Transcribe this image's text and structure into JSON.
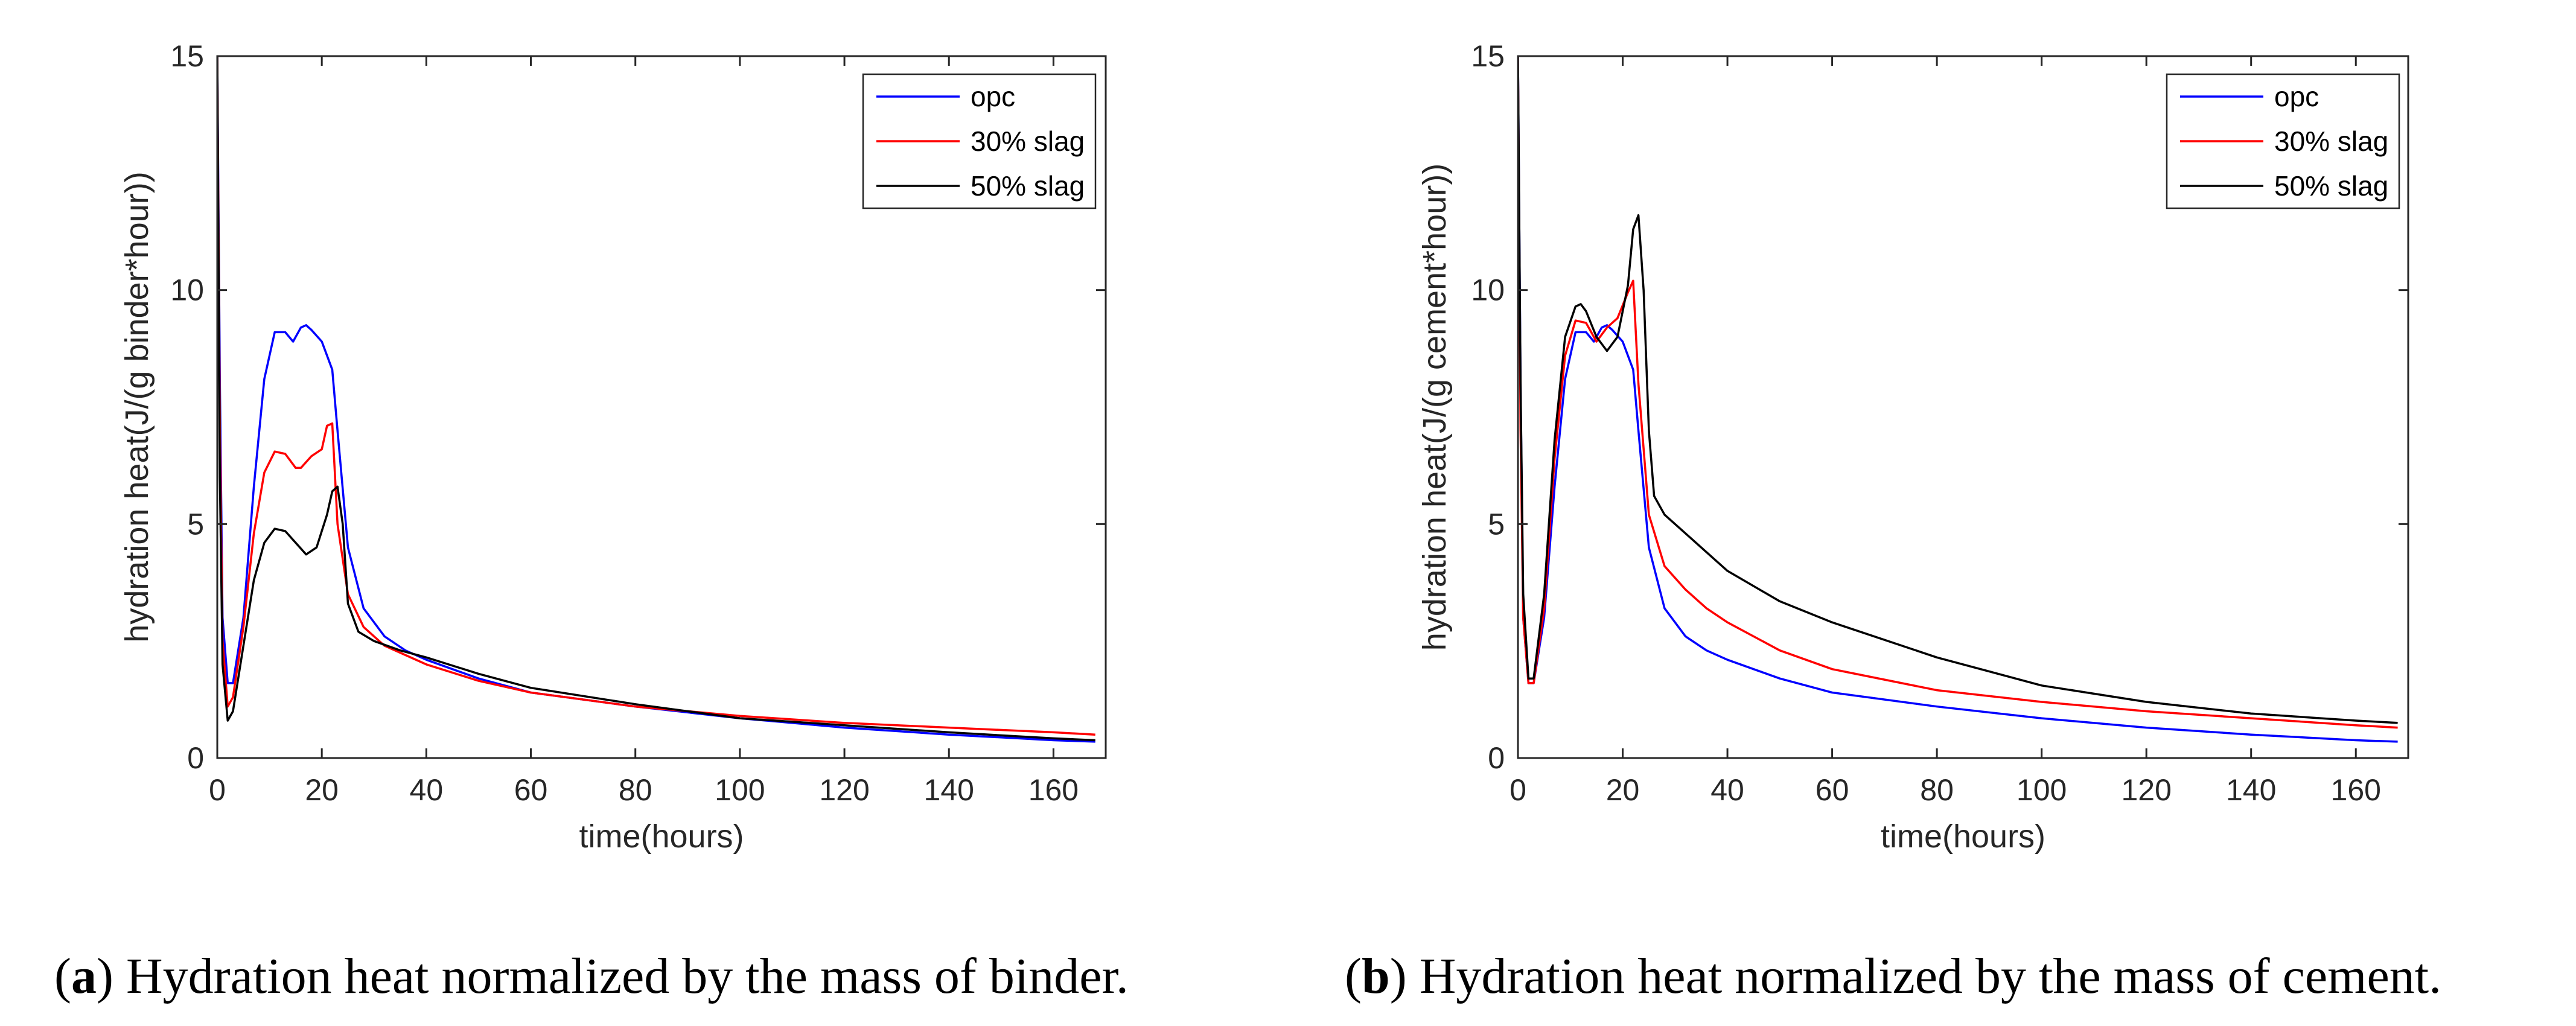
{
  "chart_data": [
    {
      "type": "line",
      "panel": "a",
      "caption_letter": "a",
      "caption_text": "Hydration heat normalized by the mass of binder.",
      "xlabel": "time(hours)",
      "ylabel": "hydration heat(J/(g binder*hour))",
      "xlim": [
        0,
        170
      ],
      "ylim": [
        0,
        15
      ],
      "xticks": [
        0,
        20,
        40,
        60,
        80,
        100,
        120,
        140,
        160
      ],
      "yticks": [
        0,
        5,
        10,
        15
      ],
      "grid": false,
      "legend_position": "top-right",
      "series": [
        {
          "name": "opc",
          "color": "#0000ff",
          "x": [
            0,
            0.5,
            1,
            2,
            3,
            5,
            7,
            9,
            11,
            13,
            14.5,
            16,
            17,
            18,
            20,
            22,
            23,
            25,
            28,
            32,
            36,
            40,
            50,
            60,
            80,
            100,
            120,
            140,
            160,
            168
          ],
          "y": [
            15,
            8,
            3,
            1.6,
            1.6,
            3,
            5.8,
            8.1,
            9.1,
            9.1,
            8.9,
            9.2,
            9.25,
            9.15,
            8.9,
            8.3,
            7.0,
            4.5,
            3.2,
            2.6,
            2.3,
            2.1,
            1.7,
            1.4,
            1.1,
            0.85,
            0.65,
            0.5,
            0.38,
            0.35
          ]
        },
        {
          "name": "30% slag",
          "color": "#ff0000",
          "x": [
            0,
            0.5,
            1,
            2,
            3,
            5,
            7,
            9,
            11,
            13,
            15,
            16,
            18,
            20,
            21,
            22,
            23,
            25,
            28,
            32,
            36,
            40,
            50,
            60,
            80,
            100,
            120,
            140,
            160,
            168
          ],
          "y": [
            15,
            7,
            2.5,
            1.1,
            1.3,
            2.8,
            4.8,
            6.1,
            6.55,
            6.5,
            6.2,
            6.2,
            6.45,
            6.6,
            7.1,
            7.15,
            5.0,
            3.5,
            2.8,
            2.4,
            2.2,
            2.0,
            1.65,
            1.4,
            1.1,
            0.9,
            0.75,
            0.65,
            0.55,
            0.5
          ]
        },
        {
          "name": "50% slag",
          "color": "#000000",
          "x": [
            0,
            0.5,
            1,
            2,
            3,
            5,
            7,
            9,
            11,
            13,
            15,
            17,
            19,
            21,
            22,
            23,
            24,
            25,
            27,
            30,
            35,
            40,
            50,
            60,
            80,
            100,
            120,
            140,
            160,
            168
          ],
          "y": [
            15,
            6,
            2,
            0.8,
            1.0,
            2.4,
            3.8,
            4.6,
            4.9,
            4.85,
            4.6,
            4.35,
            4.5,
            5.2,
            5.7,
            5.8,
            5.0,
            3.3,
            2.7,
            2.5,
            2.3,
            2.15,
            1.8,
            1.5,
            1.15,
            0.85,
            0.7,
            0.55,
            0.42,
            0.38
          ]
        }
      ]
    },
    {
      "type": "line",
      "panel": "b",
      "caption_letter": "b",
      "caption_text": "Hydration heat normalized by the mass of cement.",
      "xlabel": "time(hours)",
      "ylabel": "hydration heat(J/(g cement*hour))",
      "xlim": [
        0,
        170
      ],
      "ylim": [
        0,
        15
      ],
      "xticks": [
        0,
        20,
        40,
        60,
        80,
        100,
        120,
        140,
        160
      ],
      "yticks": [
        0,
        5,
        10,
        15
      ],
      "grid": false,
      "legend_position": "top-right",
      "series": [
        {
          "name": "opc",
          "color": "#0000ff",
          "x": [
            0,
            0.5,
            1,
            2,
            3,
            5,
            7,
            9,
            11,
            13,
            14.5,
            16,
            17,
            18,
            20,
            22,
            23,
            25,
            28,
            32,
            36,
            40,
            50,
            60,
            80,
            100,
            120,
            140,
            160,
            168
          ],
          "y": [
            15,
            8,
            3,
            1.6,
            1.6,
            3,
            5.8,
            8.1,
            9.1,
            9.1,
            8.9,
            9.2,
            9.25,
            9.15,
            8.9,
            8.3,
            7.0,
            4.5,
            3.2,
            2.6,
            2.3,
            2.1,
            1.7,
            1.4,
            1.1,
            0.85,
            0.65,
            0.5,
            0.38,
            0.35
          ]
        },
        {
          "name": "30% slag",
          "color": "#ff0000",
          "x": [
            0,
            0.5,
            1,
            2,
            3,
            5,
            7,
            9,
            11,
            13,
            15,
            17,
            19,
            21,
            22,
            23,
            25,
            28,
            32,
            36,
            40,
            50,
            60,
            80,
            100,
            120,
            140,
            160,
            168
          ],
          "y": [
            15,
            7,
            3,
            1.6,
            1.6,
            3.2,
            6.4,
            8.6,
            9.35,
            9.3,
            8.9,
            9.2,
            9.4,
            9.95,
            10.2,
            8.0,
            5.2,
            4.1,
            3.6,
            3.2,
            2.9,
            2.3,
            1.9,
            1.45,
            1.2,
            1.0,
            0.85,
            0.7,
            0.65
          ]
        },
        {
          "name": "50% slag",
          "color": "#000000",
          "x": [
            0,
            0.5,
            1,
            2,
            3,
            5,
            7,
            9,
            11,
            12,
            13,
            15,
            17,
            19,
            21,
            22,
            23,
            24,
            25,
            26,
            28,
            32,
            36,
            40,
            50,
            60,
            80,
            100,
            120,
            140,
            160,
            168
          ],
          "y": [
            15,
            8,
            3.5,
            1.7,
            1.7,
            3.5,
            6.8,
            9.0,
            9.65,
            9.7,
            9.55,
            9.0,
            8.7,
            9.0,
            10.1,
            11.3,
            11.6,
            10.0,
            7.0,
            5.6,
            5.2,
            4.8,
            4.4,
            4.0,
            3.35,
            2.9,
            2.15,
            1.55,
            1.2,
            0.95,
            0.8,
            0.75
          ]
        }
      ]
    }
  ]
}
